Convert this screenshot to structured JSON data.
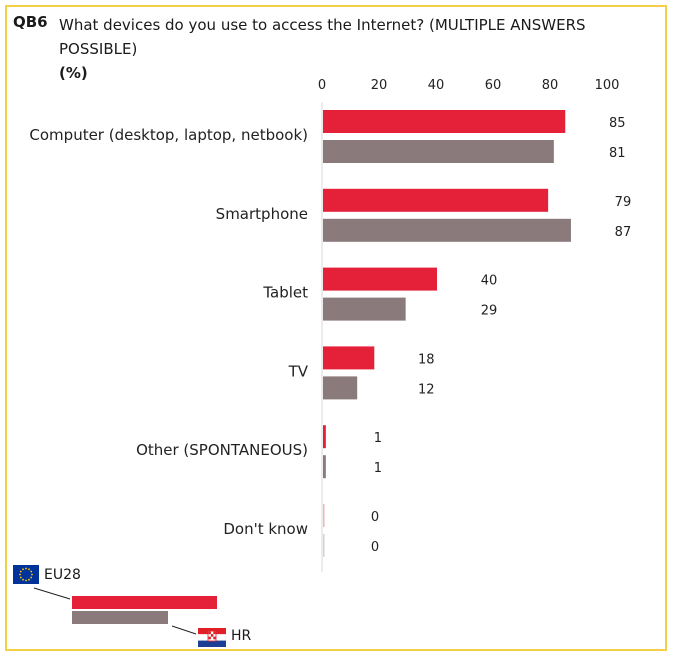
{
  "question": {
    "code": "QB6",
    "text": "What devices do you use to access the Internet? (MULTIPLE ANSWERS POSSIBLE)",
    "unit": "(%)"
  },
  "colors": {
    "eu": "#e5213a",
    "hr": "#8b7a7b",
    "frame": "#f3cf45",
    "gridline": "#d9d9d9"
  },
  "legend": {
    "eu_label": "EU28",
    "hr_label": "HR",
    "eu_icon": "eu-flag-icon",
    "hr_icon": "croatia-flag-icon"
  },
  "chart_data": {
    "type": "bar",
    "orientation": "horizontal",
    "xlim": [
      0,
      100
    ],
    "xticks": [
      0,
      20,
      40,
      60,
      80,
      100
    ],
    "categories": [
      "Computer (desktop, laptop, netbook)",
      "Smartphone",
      "Tablet",
      "TV",
      "Other (SPONTANEOUS)",
      "Don't know"
    ],
    "series": [
      {
        "name": "EU28",
        "values": [
          85,
          79,
          40,
          18,
          1,
          0
        ]
      },
      {
        "name": "HR",
        "values": [
          81,
          87,
          29,
          12,
          1,
          0
        ]
      }
    ],
    "legend_position": "bottom-left"
  }
}
